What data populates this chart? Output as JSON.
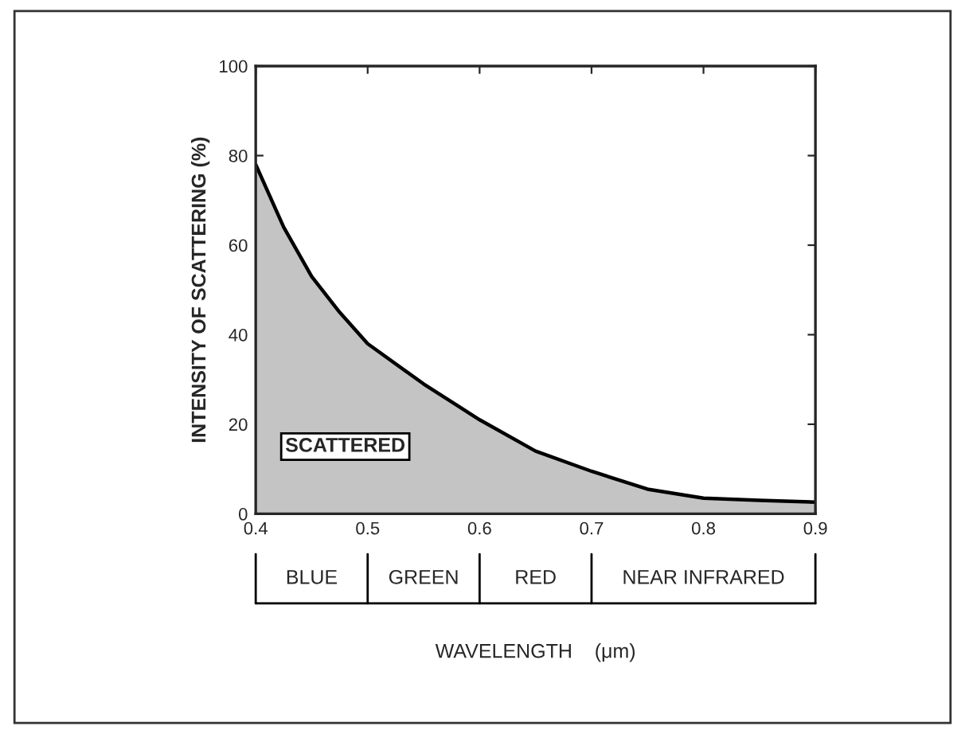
{
  "chart_data": {
    "type": "area",
    "ylabel": "INTENSITY OF SCATTERING (%)",
    "x": [
      0.4,
      0.425,
      0.45,
      0.475,
      0.5,
      0.55,
      0.6,
      0.65,
      0.7,
      0.75,
      0.8,
      0.85,
      0.9
    ],
    "series": [
      {
        "color": "#c4c4c4",
        "values": [
          78,
          64,
          53,
          45,
          38,
          29,
          21,
          14,
          9.5,
          5.5,
          3.5,
          3,
          2.6
        ]
      }
    ],
    "xlim": [
      0.4,
      0.9
    ],
    "ylim": [
      0,
      100
    ],
    "xticks": [
      0.4,
      0.5,
      0.6,
      0.7,
      0.8,
      0.9
    ],
    "yticks": [
      0,
      20,
      40,
      60,
      80,
      100
    ],
    "annotations": [
      "SCATTERED",
      "BLUE",
      "GREEN",
      "RED",
      "NEAR INFRARED",
      "WAVELENGTH    (μm)"
    ],
    "grid": false
  }
}
